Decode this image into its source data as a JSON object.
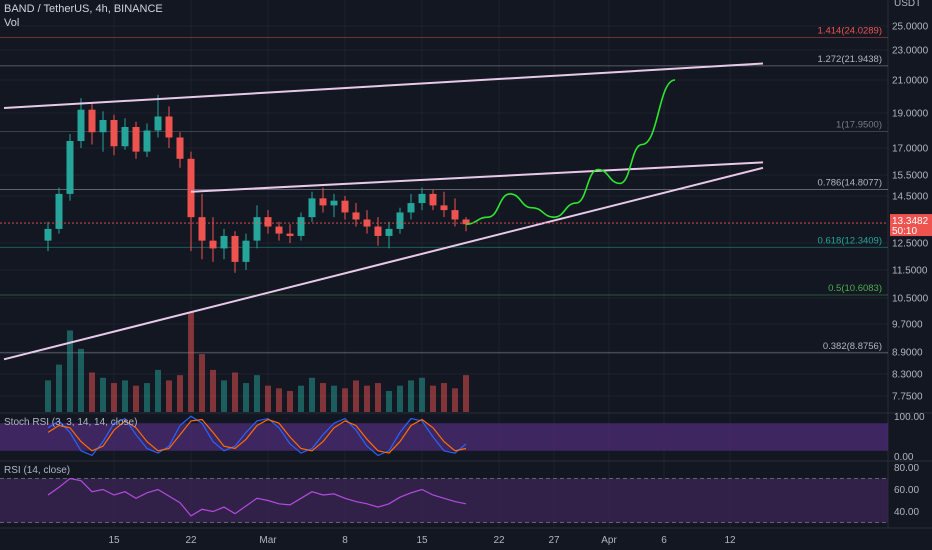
{
  "header": {
    "symbol_line": "BAND / TetherUS, 4h, BINANCE",
    "volume_label": "Vol",
    "currency": "USDT"
  },
  "colors": {
    "background": "#131722",
    "bull": "#26a69a",
    "bear": "#ef5350",
    "trendline": "#e9c9ea",
    "projection": "#2ee62e",
    "stoch_fill": "#4a2b72",
    "rsi_fill": "#3a2452",
    "rsi_line": "#b44adf"
  },
  "chart_data": {
    "type": "candlestick",
    "price_axis_ticks": [
      25.0,
      23.0,
      21.0,
      19.0,
      17.0,
      15.5,
      14.5,
      12.5,
      11.5,
      10.5,
      9.7,
      8.9,
      8.3,
      7.75
    ],
    "price_axis_labels": [
      "25.0000",
      "23.0000",
      "21.0000",
      "19.0000",
      "17.0000",
      "15.5000",
      "14.5000",
      "12.5000",
      "11.5000",
      "10.5000",
      "9.7000",
      "8.9000",
      "8.3000",
      "7.7500"
    ],
    "current_price": {
      "value": "13.3482",
      "countdown": "50:10"
    },
    "fib_levels": [
      {
        "ratio": "1.414",
        "price": "24.0289",
        "label": "1.414(24.0289)",
        "color": "#ef5350"
      },
      {
        "ratio": "1.272",
        "price": "21.9438",
        "label": "1.272(21.9438)",
        "color": "#b2b5be"
      },
      {
        "ratio": "1",
        "price": "17.9500",
        "label": "1(17.9500)",
        "color": "#787b86"
      },
      {
        "ratio": "0.786",
        "price": "14.8077",
        "label": "0.786(14.8077)",
        "color": "#b2b5be"
      },
      {
        "ratio": "0.618",
        "price": "12.3409",
        "label": "0.618(12.3409)",
        "color": "#26a69a"
      },
      {
        "ratio": "0.5",
        "price": "10.6083",
        "label": "0.5(10.6083)",
        "color": "#4caf50"
      },
      {
        "ratio": "0.382",
        "price": "8.8756",
        "label": "0.382(8.8756)",
        "color": "#b2b5be"
      }
    ],
    "x_axis_labels": [
      "15",
      "22",
      "Mar",
      "8",
      "15",
      "22",
      "27",
      "Apr",
      "6",
      "12"
    ],
    "candles": [
      {
        "x": "Feb 9",
        "o": 12.6,
        "h": 13.4,
        "l": 12.2,
        "c": 13.1
      },
      {
        "x": "Feb 10",
        "o": 13.1,
        "h": 14.9,
        "l": 12.9,
        "c": 14.6
      },
      {
        "x": "Feb 11",
        "o": 14.6,
        "h": 17.8,
        "l": 14.3,
        "c": 17.4
      },
      {
        "x": "Feb 12",
        "o": 17.4,
        "h": 19.9,
        "l": 17.0,
        "c": 19.2
      },
      {
        "x": "Feb 13",
        "o": 19.2,
        "h": 19.6,
        "l": 17.2,
        "c": 17.9
      },
      {
        "x": "Feb 14",
        "o": 17.9,
        "h": 19.1,
        "l": 16.8,
        "c": 18.6
      },
      {
        "x": "Feb 15",
        "o": 18.6,
        "h": 18.9,
        "l": 16.6,
        "c": 17.1
      },
      {
        "x": "Feb 16",
        "o": 17.1,
        "h": 18.7,
        "l": 16.9,
        "c": 18.2
      },
      {
        "x": "Feb 17",
        "o": 18.2,
        "h": 18.5,
        "l": 16.4,
        "c": 16.8
      },
      {
        "x": "Feb 18",
        "o": 16.8,
        "h": 18.4,
        "l": 16.5,
        "c": 18.0
      },
      {
        "x": "Feb 19",
        "o": 18.0,
        "h": 20.1,
        "l": 17.6,
        "c": 18.8
      },
      {
        "x": "Feb 20",
        "o": 18.8,
        "h": 19.4,
        "l": 17.0,
        "c": 17.6
      },
      {
        "x": "Feb 21",
        "o": 17.6,
        "h": 17.9,
        "l": 15.9,
        "c": 16.4
      },
      {
        "x": "Feb 22",
        "o": 16.4,
        "h": 16.8,
        "l": 12.2,
        "c": 13.6
      },
      {
        "x": "Feb 23",
        "o": 13.6,
        "h": 14.6,
        "l": 11.9,
        "c": 12.6
      },
      {
        "x": "Feb 24",
        "o": 12.6,
        "h": 13.6,
        "l": 11.8,
        "c": 12.3
      },
      {
        "x": "Feb 25",
        "o": 12.3,
        "h": 13.1,
        "l": 11.9,
        "c": 12.8
      },
      {
        "x": "Feb 26",
        "o": 12.8,
        "h": 13.0,
        "l": 11.4,
        "c": 11.8
      },
      {
        "x": "Feb 27",
        "o": 11.8,
        "h": 12.9,
        "l": 11.5,
        "c": 12.6
      },
      {
        "x": "Feb 28",
        "o": 12.6,
        "h": 14.1,
        "l": 12.3,
        "c": 13.6
      },
      {
        "x": "Mar 1",
        "o": 13.6,
        "h": 13.9,
        "l": 12.9,
        "c": 13.2
      },
      {
        "x": "Mar 2",
        "o": 13.2,
        "h": 13.4,
        "l": 12.6,
        "c": 12.9
      },
      {
        "x": "Mar 3",
        "o": 12.9,
        "h": 13.3,
        "l": 12.5,
        "c": 12.8
      },
      {
        "x": "Mar 4",
        "o": 12.8,
        "h": 13.8,
        "l": 12.6,
        "c": 13.6
      },
      {
        "x": "Mar 5",
        "o": 13.6,
        "h": 14.7,
        "l": 13.4,
        "c": 14.4
      },
      {
        "x": "Mar 6",
        "o": 14.4,
        "h": 14.9,
        "l": 13.8,
        "c": 14.1
      },
      {
        "x": "Mar 7",
        "o": 14.1,
        "h": 14.6,
        "l": 13.6,
        "c": 14.3
      },
      {
        "x": "Mar 8",
        "o": 14.3,
        "h": 14.5,
        "l": 13.5,
        "c": 13.8
      },
      {
        "x": "Mar 9",
        "o": 13.8,
        "h": 14.2,
        "l": 13.2,
        "c": 13.5
      },
      {
        "x": "Mar 10",
        "o": 13.5,
        "h": 13.9,
        "l": 12.9,
        "c": 13.2
      },
      {
        "x": "Mar 11",
        "o": 13.2,
        "h": 13.6,
        "l": 12.4,
        "c": 12.8
      },
      {
        "x": "Mar 12",
        "o": 12.8,
        "h": 13.4,
        "l": 12.3,
        "c": 13.1
      },
      {
        "x": "Mar 13",
        "o": 13.1,
        "h": 14.0,
        "l": 12.9,
        "c": 13.8
      },
      {
        "x": "Mar 14",
        "o": 13.8,
        "h": 14.6,
        "l": 13.5,
        "c": 14.2
      },
      {
        "x": "Mar 15",
        "o": 14.2,
        "h": 14.9,
        "l": 13.9,
        "c": 14.6
      },
      {
        "x": "Mar 16",
        "o": 14.6,
        "h": 14.8,
        "l": 13.9,
        "c": 14.1
      },
      {
        "x": "Mar 17",
        "o": 14.1,
        "h": 14.7,
        "l": 13.6,
        "c": 13.9
      },
      {
        "x": "Mar 18",
        "o": 13.9,
        "h": 14.4,
        "l": 13.2,
        "c": 13.5
      },
      {
        "x": "Mar 19",
        "o": 13.5,
        "h": 13.6,
        "l": 13.0,
        "c": 13.3
      }
    ],
    "trendlines": [
      {
        "name": "upper-long",
        "from": {
          "x": "Feb 5",
          "y": 19.3
        },
        "to": {
          "x": "Apr 15",
          "y": 22.1
        }
      },
      {
        "name": "lower-support",
        "from": {
          "x": "Feb 5",
          "y": 8.7
        },
        "to": {
          "x": "Apr 15",
          "y": 15.9
        }
      },
      {
        "name": "wedge-top",
        "from": {
          "x": "Feb 22",
          "y": 14.7
        },
        "to": {
          "x": "Apr 15",
          "y": 16.2
        }
      }
    ],
    "projection_path": [
      {
        "x": "Mar 19",
        "y": 13.3
      },
      {
        "x": "Mar 21",
        "y": 13.6
      },
      {
        "x": "Mar 23",
        "y": 14.6
      },
      {
        "x": "Mar 25",
        "y": 14.0
      },
      {
        "x": "Mar 27",
        "y": 13.6
      },
      {
        "x": "Mar 29",
        "y": 14.2
      },
      {
        "x": "Mar 31",
        "y": 15.8
      },
      {
        "x": "Apr 2",
        "y": 15.1
      },
      {
        "x": "Apr 4",
        "y": 17.2
      },
      {
        "x": "Apr 7",
        "y": 21.0
      }
    ],
    "indicators": {
      "stoch_rsi": {
        "label": "Stoch RSI (3, 3, 14, 14, close)",
        "axis": [
          "100.00",
          "0.00"
        ],
        "band_upper": 80,
        "band_lower": 20,
        "k": [
          70,
          85,
          60,
          20,
          10,
          40,
          80,
          90,
          55,
          25,
          15,
          30,
          75,
          95,
          80,
          40,
          20,
          30,
          60,
          85,
          90,
          70,
          35,
          15,
          25,
          55,
          80,
          90,
          65,
          30,
          10,
          20,
          60,
          90,
          85,
          50,
          20,
          15,
          35
        ],
        "d": [
          60,
          75,
          70,
          40,
          20,
          30,
          65,
          85,
          70,
          40,
          20,
          25,
          55,
          85,
          88,
          60,
          30,
          25,
          45,
          75,
          88,
          80,
          50,
          25,
          20,
          40,
          70,
          85,
          75,
          45,
          20,
          15,
          40,
          75,
          88,
          70,
          40,
          20,
          25
        ]
      },
      "rsi": {
        "label": "RSI (14, close)",
        "axis": [
          "80.00",
          "60.00",
          "40.00"
        ],
        "band_upper": 70,
        "band_lower": 30,
        "values": [
          55,
          62,
          70,
          68,
          58,
          60,
          55,
          58,
          52,
          57,
          60,
          54,
          48,
          36,
          42,
          40,
          44,
          38,
          45,
          52,
          50,
          47,
          46,
          52,
          58,
          55,
          56,
          52,
          49,
          47,
          44,
          47,
          53,
          57,
          60,
          55,
          52,
          49,
          47
        ]
      }
    },
    "volume": [
      1.2,
      1.8,
      3.1,
      2.4,
      1.5,
      1.3,
      1.1,
      1.2,
      1.0,
      1.1,
      1.6,
      1.2,
      1.4,
      3.8,
      2.2,
      1.6,
      1.2,
      1.5,
      1.1,
      1.4,
      1.0,
      0.9,
      0.8,
      1.0,
      1.3,
      1.1,
      1.0,
      0.9,
      1.2,
      1.0,
      1.1,
      0.8,
      1.0,
      1.2,
      1.3,
      1.0,
      1.1,
      0.9,
      1.4
    ]
  }
}
